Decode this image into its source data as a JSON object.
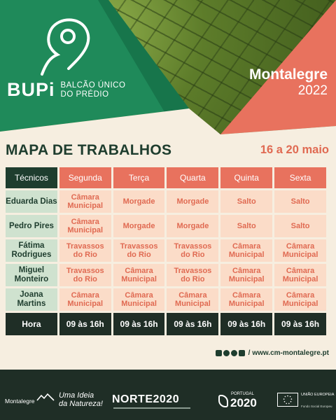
{
  "brand": {
    "name": "BUPi",
    "subtitle_line1": "BALCÃO ÚNICO",
    "subtitle_line2": "DO PRÉDIO"
  },
  "location": {
    "name": "Montalegre",
    "year": "2022"
  },
  "heading": {
    "title": "MAPA DE TRABALHOS",
    "dates": "16 a 20 maio"
  },
  "table": {
    "corner": "Técnicos",
    "days": [
      "Segunda",
      "Terça",
      "Quarta",
      "Quinta",
      "Sexta"
    ],
    "rows": [
      {
        "name": [
          "Eduarda Dias"
        ],
        "cells": [
          [
            "Câmara",
            "Municipal"
          ],
          [
            "Morgade"
          ],
          [
            "Morgade"
          ],
          [
            "Salto"
          ],
          [
            "Salto"
          ]
        ]
      },
      {
        "name": [
          "Pedro Pires"
        ],
        "cells": [
          [
            "Câmara",
            "Municipal"
          ],
          [
            "Morgade"
          ],
          [
            "Morgade"
          ],
          [
            "Salto"
          ],
          [
            "Salto"
          ]
        ]
      },
      {
        "name": [
          "Fátima",
          "Rodrigues"
        ],
        "cells": [
          [
            "Travassos",
            "do Rio"
          ],
          [
            "Travassos",
            "do Rio"
          ],
          [
            "Travassos",
            "do Rio"
          ],
          [
            "Câmara",
            "Municipal"
          ],
          [
            "Câmara",
            "Municipal"
          ]
        ]
      },
      {
        "name": [
          "Miguel",
          "Monteiro"
        ],
        "cells": [
          [
            "Travassos",
            "do Rio"
          ],
          [
            "Câmara",
            "Municipal"
          ],
          [
            "Travassos",
            "do Rio"
          ],
          [
            "Câmara",
            "Municipal"
          ],
          [
            "Câmara",
            "Municipal"
          ]
        ]
      },
      {
        "name": [
          "Joana Martins"
        ],
        "cells": [
          [
            "Câmara",
            "Municipal"
          ],
          [
            "Câmara",
            "Municipal"
          ],
          [
            "Câmara",
            "Municipal"
          ],
          [
            "Câmara",
            "Municipal"
          ],
          [
            "Câmara",
            "Municipal"
          ]
        ]
      }
    ],
    "hours_label": "Hora",
    "hours": [
      "09 às 16h",
      "09 às 16h",
      "09 às 16h",
      "09 às 16h",
      "09 às 16h"
    ]
  },
  "web": {
    "separator": "/",
    "url": "www.cm-montalegre.pt",
    "icons": [
      "facebook-icon",
      "instagram-icon",
      "twitter-icon",
      "youtube-icon"
    ]
  },
  "footer": {
    "municipality": "Montalegre",
    "slogan_line1": "Uma Ideia",
    "slogan_line2": "da Natureza!",
    "norte": "NORTE2020",
    "portugal_small": "PORTUGAL",
    "portugal_big": "2020",
    "eu_line1": "UNIÃO EUROPEIA",
    "eu_fund": "Fundo Social Europeu"
  },
  "colors": {
    "green": "#1f8a5a",
    "salmon": "#e8725e",
    "dark": "#1f2e26",
    "cream": "#f6eee0",
    "name_bg": "#cfe2cf",
    "cell_bg": "#fbdcc8"
  }
}
